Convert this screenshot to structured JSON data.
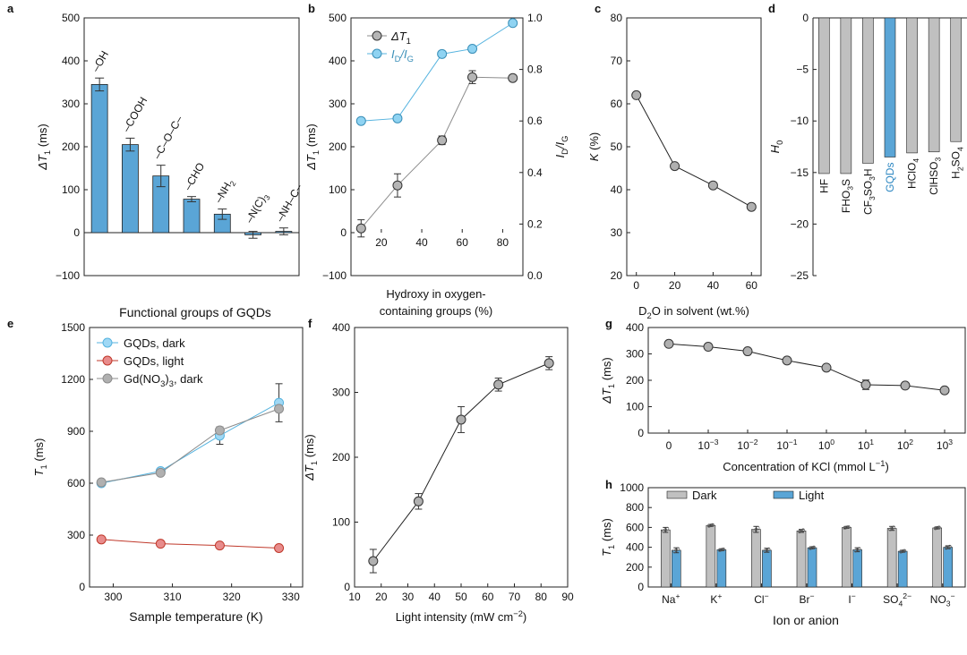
{
  "chart_data": [
    {
      "id": "a",
      "type": "bar",
      "panel_label": "a",
      "title": "",
      "xlabel": "Functional groups of GQDs",
      "ylabel_main": "ΔT",
      "ylabel_sub": "1",
      "ylabel_unit": " (ms)",
      "ylim": [
        -100,
        500
      ],
      "yticks": [
        -100,
        0,
        100,
        200,
        300,
        400,
        500
      ],
      "categories": [
        {
          "main": "–OH",
          "sub": "",
          "tail": ""
        },
        {
          "main": "–COOH",
          "sub": "",
          "tail": ""
        },
        {
          "main": "–C–O–C–",
          "sub": "",
          "tail": ""
        },
        {
          "main": "–CHO",
          "sub": "",
          "tail": ""
        },
        {
          "main": "–NH",
          "sub": "2",
          "tail": ""
        },
        {
          "main": "–N(C)",
          "sub": "3",
          "tail": ""
        },
        {
          "main": "–NH–C–",
          "sub": "",
          "tail": ""
        }
      ],
      "values": [
        345,
        205,
        132,
        78,
        43,
        -5,
        3
      ],
      "errors": [
        15,
        15,
        25,
        6,
        12,
        8,
        8
      ],
      "bar_color": "#5aa5d6"
    },
    {
      "id": "b",
      "type": "line",
      "panel_label": "b",
      "xlabel_line1": "Hydroxy in oxygen-",
      "xlabel_line2": "containing groups (%)",
      "ylabel_main": "ΔT",
      "ylabel_sub": "1",
      "ylabel_unit": " (ms)",
      "y2label_main": "I",
      "y2label_sub": "D",
      "y2label_mid": "/I",
      "y2label_sub2": "G",
      "xlim": [
        5,
        90
      ],
      "xticks": [
        20,
        40,
        60,
        80
      ],
      "ylim": [
        -100,
        500
      ],
      "yticks": [
        -100,
        0,
        100,
        200,
        300,
        400,
        500
      ],
      "y2lim": [
        0.0,
        1.0
      ],
      "y2ticks": [
        "0.0",
        "0.2",
        "0.4",
        "0.6",
        "0.8",
        "1.0"
      ],
      "series": [
        {
          "name_main": "ΔT",
          "name_sub": "1",
          "axis": "left",
          "color": "#8c8c8c",
          "marker_fill": "#b5b5b5",
          "x": [
            10,
            28,
            50,
            65,
            85
          ],
          "values": [
            10,
            110,
            215,
            362,
            360
          ],
          "errors": [
            20,
            27,
            10,
            15,
            0
          ]
        },
        {
          "name_main": "I",
          "name_sub": "D",
          "name_mid": "/I",
          "name_sub2": "G",
          "axis": "right",
          "color": "#55b3df",
          "marker_fill": "#8fd3f2",
          "x": [
            10,
            28,
            50,
            65,
            85
          ],
          "values": [
            0.6,
            0.61,
            0.86,
            0.88,
            0.98
          ]
        }
      ]
    },
    {
      "id": "c",
      "type": "line",
      "panel_label": "c",
      "xlabel": "D2O in solvent (wt.%)",
      "xlabel_pre": "D",
      "xlabel_sub": "2",
      "xlabel_post": "O in solvent (wt.%)",
      "ylabel": "K (%)",
      "ylabel_main": "K",
      "ylabel_unit": " (%)",
      "xlim": [
        -5,
        65
      ],
      "xticks": [
        0,
        20,
        40,
        60
      ],
      "ylim": [
        20,
        80
      ],
      "yticks": [
        20,
        30,
        40,
        50,
        60,
        70,
        80
      ],
      "series": [
        {
          "name": "K",
          "x": [
            0,
            20,
            40,
            60
          ],
          "values": [
            62,
            45.5,
            41,
            36
          ]
        }
      ]
    },
    {
      "id": "d",
      "type": "bar",
      "panel_label": "d",
      "ylabel_main": "H",
      "ylabel_sub": "0",
      "ylim": [
        -25,
        0
      ],
      "yticks": [
        0,
        -5,
        -10,
        -15,
        -20,
        -25
      ],
      "categories": [
        {
          "label": "HF",
          "parts": [
            [
              "HF",
              ""
            ]
          ],
          "highlight": false
        },
        {
          "label": "FHO3S",
          "parts": [
            [
              "FHO",
              ""
            ],
            [
              "3",
              "sub"
            ],
            [
              "S",
              ""
            ]
          ],
          "highlight": false
        },
        {
          "label": "CF3SO3H",
          "parts": [
            [
              "CF",
              ""
            ],
            [
              "3",
              "sub"
            ],
            [
              "SO",
              ""
            ],
            [
              "3",
              "sub"
            ],
            [
              "H",
              ""
            ]
          ],
          "highlight": false
        },
        {
          "label": "GQDs",
          "parts": [
            [
              "GQDs",
              ""
            ]
          ],
          "highlight": true
        },
        {
          "label": "HClO4",
          "parts": [
            [
              "HClO",
              ""
            ],
            [
              "4",
              "sub"
            ]
          ],
          "highlight": false
        },
        {
          "label": "ClHSO3",
          "parts": [
            [
              "ClHSO",
              ""
            ],
            [
              "3",
              "sub"
            ]
          ],
          "highlight": false
        },
        {
          "label": "H2SO4",
          "parts": [
            [
              "H",
              ""
            ],
            [
              "2",
              "sub"
            ],
            [
              "SO",
              ""
            ],
            [
              "4",
              "sub"
            ]
          ],
          "highlight": false
        }
      ],
      "values": [
        -15.1,
        -15.1,
        -14.1,
        -13.5,
        -13.1,
        -13.0,
        -12.0
      ],
      "bar_color": "#c0c0c0",
      "highlight_color": "#5aa5d6"
    },
    {
      "id": "e",
      "type": "line",
      "panel_label": "e",
      "xlabel": "Sample temperature (K)",
      "ylabel_main": "T",
      "ylabel_sub": "1",
      "ylabel_unit": " (ms)",
      "xlim": [
        296,
        332
      ],
      "xticks": [
        300,
        310,
        320,
        330
      ],
      "ylim": [
        0,
        1500
      ],
      "yticks": [
        0,
        300,
        600,
        900,
        1200,
        1500
      ],
      "series": [
        {
          "name": "GQDs, dark",
          "legend_main": "GQDs, dark",
          "color": "#55b3df",
          "marker_fill": "#9fd8f5",
          "x": [
            298,
            308,
            318,
            328
          ],
          "values": [
            600,
            670,
            875,
            1065
          ],
          "errors": [
            12,
            15,
            50,
            110
          ]
        },
        {
          "name": "GQDs, light",
          "legend_main": "GQDs, light",
          "color": "#c0392b",
          "marker_fill": "#e88c8c",
          "x": [
            298,
            308,
            318,
            328
          ],
          "values": [
            275,
            250,
            240,
            225
          ],
          "errors": [
            8,
            8,
            8,
            8
          ]
        },
        {
          "name": "Gd(NO3)3, dark",
          "legend_main": "Gd(NO",
          "legend_sub": "3",
          "legend_tail": ")",
          "legend_sub2": "3",
          "legend_end": ", dark",
          "color": "#8c8c8c",
          "marker_fill": "#b0b0b0",
          "x": [
            298,
            308,
            318,
            328
          ],
          "values": [
            605,
            660,
            905,
            1030
          ],
          "errors": [
            0,
            0,
            0,
            0
          ]
        }
      ]
    },
    {
      "id": "f",
      "type": "line",
      "panel_label": "f",
      "xlabel_main": "Light intensity (mW cm",
      "xlabel_sup": "−2",
      "xlabel_end": ")",
      "ylabel_main": "ΔT",
      "ylabel_sub": "1",
      "ylabel_unit": " (ms)",
      "xlim": [
        10,
        90
      ],
      "xticks": [
        10,
        20,
        30,
        40,
        50,
        60,
        70,
        80,
        90
      ],
      "ylim": [
        0,
        400
      ],
      "yticks": [
        0,
        100,
        200,
        300,
        400
      ],
      "series": [
        {
          "name": "ΔT1",
          "x": [
            17,
            34,
            50,
            64,
            83
          ],
          "values": [
            40,
            132,
            258,
            312,
            345
          ],
          "errors": [
            18,
            12,
            20,
            10,
            10
          ]
        }
      ]
    },
    {
      "id": "g",
      "type": "line",
      "panel_label": "g",
      "xlabel_main": "Concentration of KCl (mmol L",
      "xlabel_sup": "−1",
      "xlabel_end": ")",
      "ylabel_main": "ΔT",
      "ylabel_sub": "1",
      "ylabel_unit": " (ms)",
      "ylim": [
        0,
        400
      ],
      "yticks": [
        0,
        100,
        200,
        300,
        400
      ],
      "categories": [
        {
          "base": "0",
          "exp": ""
        },
        {
          "base": "10",
          "exp": "−3"
        },
        {
          "base": "10",
          "exp": "−2"
        },
        {
          "base": "10",
          "exp": "−1"
        },
        {
          "base": "10",
          "exp": "0"
        },
        {
          "base": "10",
          "exp": "1"
        },
        {
          "base": "10",
          "exp": "2"
        },
        {
          "base": "10",
          "exp": "3"
        }
      ],
      "series": [
        {
          "name": "ΔT1",
          "values": [
            338,
            327,
            310,
            275,
            248,
            183,
            180,
            162
          ],
          "errors": [
            8,
            10,
            8,
            8,
            5,
            18,
            5,
            8
          ]
        }
      ]
    },
    {
      "id": "h",
      "type": "bar",
      "panel_label": "h",
      "xlabel": "Ion or anion",
      "ylabel_main": "T",
      "ylabel_sub": "1",
      "ylabel_unit": " (ms)",
      "ylim": [
        0,
        1000
      ],
      "yticks": [
        0,
        200,
        400,
        600,
        800,
        1000
      ],
      "categories": [
        {
          "main": "Na",
          "sup": "+",
          "sub": ""
        },
        {
          "main": "K",
          "sup": "+",
          "sub": ""
        },
        {
          "main": "Cl",
          "sup": "−",
          "sub": ""
        },
        {
          "main": "Br",
          "sup": "−",
          "sub": ""
        },
        {
          "main": "I",
          "sup": "−",
          "sub": ""
        },
        {
          "main": "SO",
          "sup": "2−",
          "sub": "4"
        },
        {
          "main": "NO",
          "sup": "−",
          "sub": "3"
        }
      ],
      "series": [
        {
          "name": "Dark",
          "color": "#c0c0c0",
          "values": [
            575,
            620,
            580,
            565,
            600,
            590,
            595
          ],
          "errors": [
            25,
            10,
            30,
            15,
            10,
            20,
            10
          ]
        },
        {
          "name": "Light",
          "color": "#5aa5d6",
          "values": [
            370,
            375,
            370,
            395,
            375,
            360,
            400
          ],
          "errors": [
            25,
            10,
            20,
            10,
            20,
            10,
            15
          ]
        }
      ]
    }
  ]
}
